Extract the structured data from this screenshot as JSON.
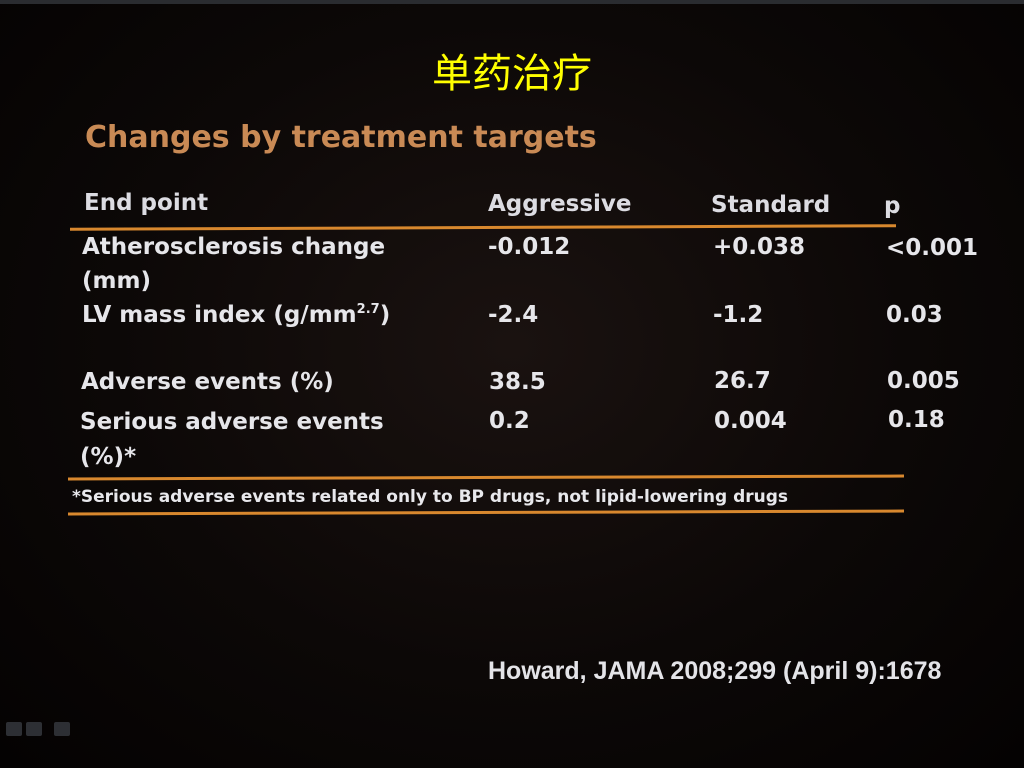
{
  "slide": {
    "title": "单药治疗"
  },
  "photo": {
    "heading": "Changes by treatment targets",
    "table": {
      "header": {
        "endpoint": "End point",
        "aggressive": "Aggressive",
        "standard": "Standard",
        "p": "p"
      },
      "rows": [
        {
          "endpoint_l1": "Atherosclerosis change",
          "endpoint_l2": "(mm)",
          "aggressive": "-0.012",
          "standard": "+0.038",
          "p": "<0.001"
        },
        {
          "endpoint": "LV mass index (g/mm",
          "endpoint_sup": "2.7",
          "endpoint_close": ")",
          "aggressive": "-2.4",
          "standard": "-1.2",
          "p": "0.03"
        },
        {
          "endpoint": "Adverse events (%)",
          "aggressive": "38.5",
          "standard": "26.7",
          "p": "0.005"
        },
        {
          "endpoint_l1": "Serious adverse events",
          "endpoint_l2": "(%)*",
          "aggressive": "0.2",
          "standard": "0.004",
          "p": "0.18"
        }
      ]
    },
    "footnote": "*Serious adverse events related only to BP drugs, not lipid-lowering drugs",
    "citation": "Howard, JAMA 2008;299 (April 9):1678"
  },
  "colors": {
    "title": "#ffff00",
    "heading": "#c98a55",
    "rule": "#d8882e",
    "text": "#e6e6ea"
  },
  "icons": [
    "slide-nav-back-icon",
    "slide-menu-icon",
    "slide-pen-icon"
  ]
}
